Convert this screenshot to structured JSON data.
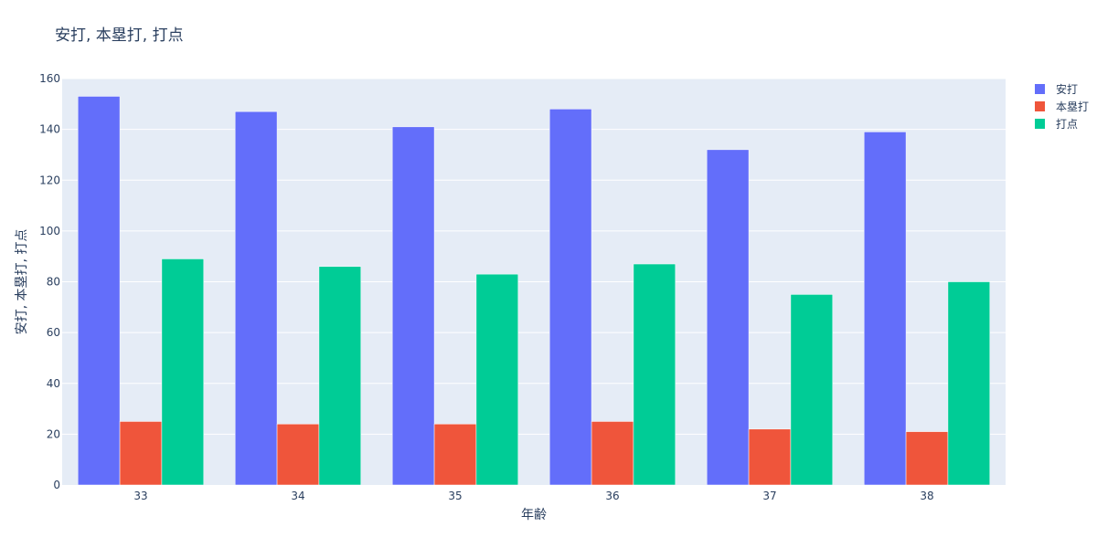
{
  "chart_data": {
    "type": "bar",
    "title": "安打, 本塁打, 打点",
    "xlabel": "年齢",
    "ylabel": "安打, 本塁打, 打点",
    "categories": [
      "33",
      "34",
      "35",
      "36",
      "37",
      "38"
    ],
    "ylim": [
      0,
      160
    ],
    "yticks": [
      0,
      20,
      40,
      60,
      80,
      100,
      120,
      140,
      160
    ],
    "grid": true,
    "legend_position": "top-right",
    "series": [
      {
        "name": "安打",
        "color": "#636efa",
        "values": [
          153,
          147,
          141,
          148,
          132,
          139
        ]
      },
      {
        "name": "本塁打",
        "color": "#ef553b",
        "values": [
          25,
          24,
          24,
          25,
          22,
          21
        ]
      },
      {
        "name": "打点",
        "color": "#00cc96",
        "values": [
          89,
          86,
          83,
          87,
          75,
          80
        ]
      }
    ],
    "plot_background": "#e5ecf6"
  }
}
